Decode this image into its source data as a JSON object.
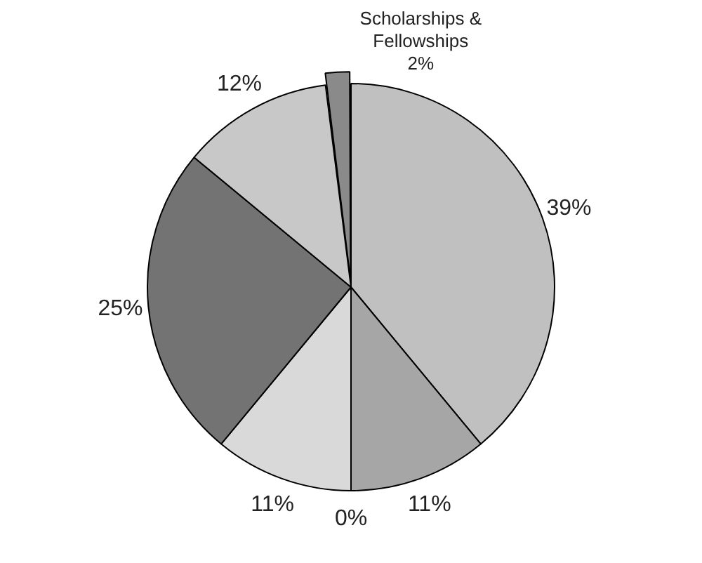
{
  "chart_data": {
    "type": "pie",
    "categories": [
      null,
      null,
      null,
      null,
      null,
      null,
      "Scholarships & Fellowships"
    ],
    "values": [
      39,
      11,
      0,
      11,
      25,
      12,
      2
    ],
    "colors": [
      "#c0c0c0",
      "#a6a6a6",
      "#8c8c8c",
      "#d9d9d9",
      "#737373",
      "#c8c8c8",
      "#8a8a8a"
    ],
    "value_labels": [
      "39%",
      "11%",
      "0%",
      "11%",
      "25%",
      "12%",
      "2%"
    ],
    "legend": false
  }
}
